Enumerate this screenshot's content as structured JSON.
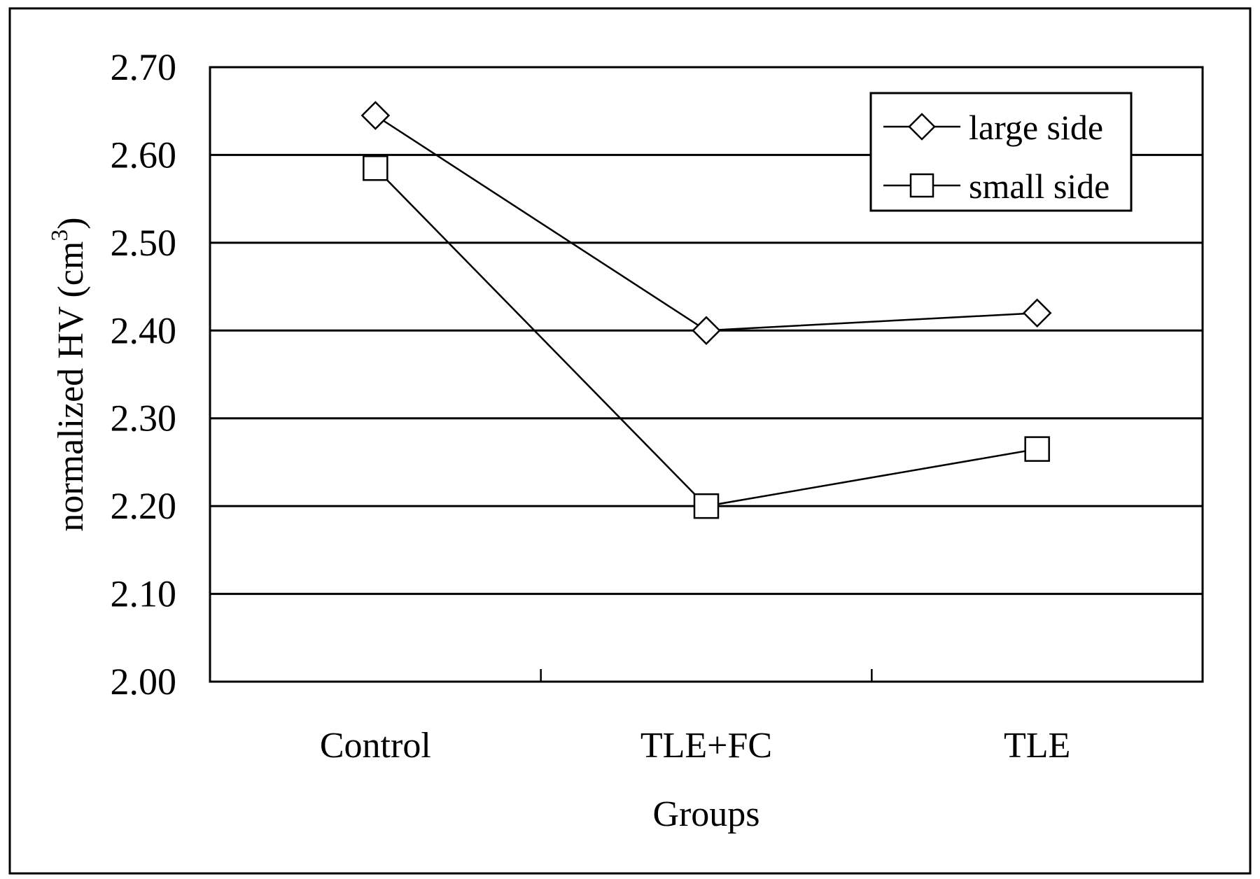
{
  "chart_data": {
    "type": "line",
    "title": "",
    "xlabel": "Groups",
    "ylabel": "normalized HV (cm",
    "ylabel_superscript": "3",
    "ylabel_suffix": ")",
    "categories": [
      "Control",
      "TLE+FC",
      "TLE"
    ],
    "ylim": [
      2.0,
      2.7
    ],
    "yticks": [
      "2.00",
      "2.10",
      "2.20",
      "2.30",
      "2.40",
      "2.50",
      "2.60",
      "2.70"
    ],
    "grid": true,
    "legend_position": "top-right",
    "series": [
      {
        "name": "large side",
        "marker": "diamond",
        "values": [
          2.645,
          2.4,
          2.42
        ]
      },
      {
        "name": "small side",
        "marker": "square",
        "values": [
          2.585,
          2.2,
          2.265
        ]
      }
    ]
  }
}
